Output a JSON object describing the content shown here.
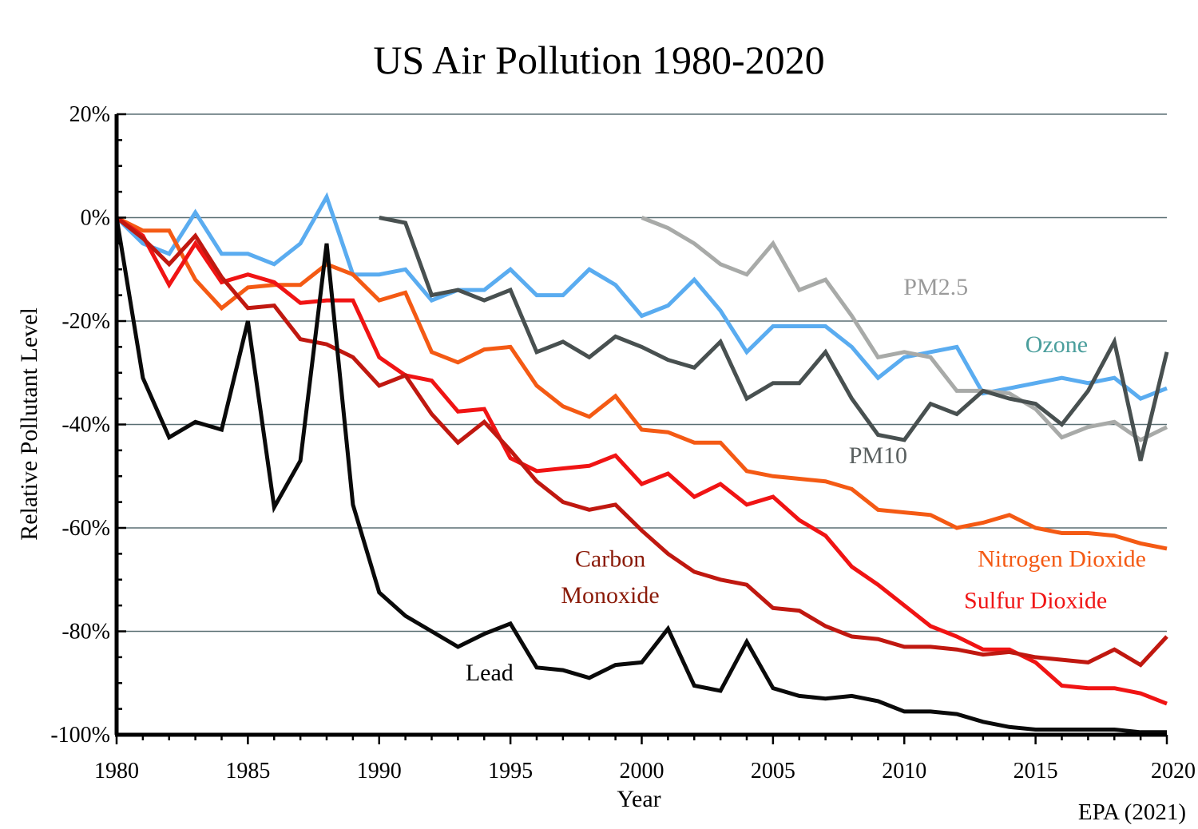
{
  "chart_data": {
    "type": "line",
    "title": "US Air Pollution 1980-2020",
    "xlabel": "Year",
    "ylabel": "Relative Pollutant Level",
    "source": "EPA (2021)",
    "xlim": [
      1980,
      2020
    ],
    "ylim": [
      -100,
      20
    ],
    "x_ticks": [
      1980,
      1985,
      1990,
      1995,
      2000,
      2005,
      2010,
      2015,
      2020
    ],
    "y_ticks": [
      20,
      0,
      -20,
      -40,
      -60,
      -80,
      -100
    ],
    "y_tick_labels": [
      "20%",
      "0%",
      "-20%",
      "-40%",
      "-60%",
      "-80%",
      "-100%"
    ],
    "grid": "horizontal",
    "legend": "inline labels",
    "series": [
      {
        "name": "Ozone",
        "color": "#5aacf0",
        "label_color": "#4a9e9c",
        "start_year": 1980,
        "values": [
          0,
          -5,
          -7,
          1,
          -7,
          -7,
          -9,
          -5,
          4,
          -11,
          -11,
          -10,
          -16,
          -14,
          -14,
          -10,
          -15,
          -15,
          -10,
          -13,
          -19,
          -17,
          -12,
          -18,
          -26,
          -21,
          -21,
          -21,
          -25,
          -31,
          -27,
          -26,
          -25,
          -34,
          -33,
          -32,
          -31,
          -32,
          -31,
          -35,
          -33
        ]
      },
      {
        "name": "PM2.5",
        "color": "#a8aaa8",
        "label_color": "#9a9a9a",
        "start_year": 2000,
        "values": [
          0,
          -2,
          -5,
          -9,
          -11,
          -5,
          -14,
          -12,
          -19,
          -27,
          -26,
          -27,
          -33.5,
          -33.5,
          -34,
          -37,
          -42.5,
          -40.5,
          -39.5,
          -43,
          -40.5
        ]
      },
      {
        "name": "PM10",
        "color": "#485050",
        "label_color": "#5a6060",
        "start_year": 1990,
        "values": [
          0,
          -1,
          -15,
          -14,
          -16,
          -14,
          -26,
          -24,
          -27,
          -23,
          -25,
          -27.5,
          -29,
          -24,
          -35,
          -32,
          -32,
          -26,
          -35,
          -42,
          -43,
          -36,
          -38,
          -33.5,
          -35,
          -36,
          -40,
          -33.5,
          -24,
          -47,
          -26
        ]
      },
      {
        "name": "Nitrogen Dioxide",
        "color": "#f45a14",
        "label_color": "#f45a14",
        "start_year": 1980,
        "values": [
          0,
          -2.5,
          -2.5,
          -12,
          -17.5,
          -13.5,
          -13,
          -13,
          -9,
          -11,
          -16,
          -14.5,
          -26,
          -28,
          -25.5,
          -25,
          -32.5,
          -36.5,
          -38.5,
          -34.5,
          -41,
          -41.5,
          -43.5,
          -43.5,
          -49,
          -50,
          -50.5,
          -51,
          -52.5,
          -56.5,
          -57,
          -57.5,
          -60,
          -59,
          -57.5,
          -60,
          -61,
          -61,
          -61.5,
          -63,
          -64
        ]
      },
      {
        "name": "Sulfur Dioxide",
        "color": "#f01414",
        "label_color": "#f01414",
        "start_year": 1980,
        "values": [
          0,
          -3.5,
          -13,
          -5,
          -12.5,
          -11,
          -12.5,
          -16.5,
          -16,
          -16,
          -27,
          -30.5,
          -31.5,
          -37.5,
          -37,
          -46.5,
          -49,
          -48.5,
          -48,
          -46,
          -51.5,
          -49.5,
          -54,
          -51.5,
          -55.5,
          -54,
          -58.5,
          -61.5,
          -67.5,
          -71,
          -75,
          -79,
          -81,
          -83.5,
          -83.5,
          -86,
          -90.5,
          -91,
          -91,
          -92,
          -94
        ]
      },
      {
        "name": "Carbon Monoxide",
        "color": "#c01810",
        "label_color": "#8a1a08",
        "start_year": 1980,
        "values": [
          0,
          -4,
          -9,
          -3.5,
          -11.5,
          -17.5,
          -17,
          -23.5,
          -24.5,
          -27,
          -32.5,
          -30.5,
          -38,
          -43.5,
          -39.5,
          -45,
          -51,
          -55,
          -56.5,
          -55.5,
          -60.5,
          -65,
          -68.5,
          -70,
          -71,
          -75.5,
          -76,
          -79,
          -81,
          -81.5,
          -83,
          -83,
          -83.5,
          -84.5,
          -84,
          -85,
          -85.5,
          -86,
          -83.5,
          -86.5,
          -81
        ]
      },
      {
        "name": "Lead",
        "color": "#0a0a0a",
        "label_color": "#000000",
        "start_year": 1980,
        "values": [
          0,
          -31,
          -42.5,
          -39.5,
          -41,
          -20,
          -56,
          -47,
          -5,
          -55.5,
          -72.5,
          -77,
          -80,
          -83,
          -80.5,
          -78.5,
          -87,
          -87.5,
          -89,
          -86.5,
          -86,
          -79.5,
          -90.5,
          -91.5,
          -82,
          -91,
          -92.5,
          -93,
          -92.5,
          -93.5,
          -95.5,
          -95.5,
          -96,
          -97.5,
          -98.5,
          -99,
          -99,
          -99,
          -99,
          -99.5,
          -99.5
        ]
      }
    ],
    "annotations": [
      {
        "series": "PM2.5",
        "text": "PM2.5",
        "x": 2011.2,
        "y": -14.9
      },
      {
        "series": "Ozone",
        "text": "Ozone",
        "x": 2015.8,
        "y": -26
      },
      {
        "series": "PM10",
        "text": "PM10",
        "x": 2009.0,
        "y": -47.5
      },
      {
        "series": "Nitrogen Dioxide",
        "text": "Nitrogen Dioxide",
        "x": 2016.0,
        "y": -67.5
      },
      {
        "series": "Sulfur Dioxide",
        "text": "Sulfur Dioxide",
        "x": 2015.0,
        "y": -75.5
      },
      {
        "series": "Carbon Monoxide",
        "text": "Carbon",
        "x": 1998.8,
        "y": -67.5
      },
      {
        "series": "Carbon Monoxide",
        "text": "Monoxide",
        "x": 1998.8,
        "y": -74.5
      },
      {
        "series": "Lead",
        "text": "Lead",
        "x": 1994.2,
        "y": -89.5
      }
    ]
  }
}
